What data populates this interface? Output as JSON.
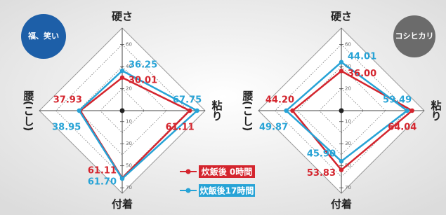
{
  "legend": [
    {
      "name": "炊飯後 0時間",
      "color": "#d4252e"
    },
    {
      "name": "炊飯後17時間",
      "color": "#27a3d6"
    }
  ],
  "chart_data": [
    {
      "type": "radar",
      "title": "福、笑い",
      "badge_color": "#1d5fa8",
      "categories": [
        "硬さ",
        "粘り",
        "付着",
        "腰(こし)"
      ],
      "rlim": [
        0,
        75
      ],
      "rticks": [
        10,
        20,
        30,
        40,
        50,
        60,
        70
      ],
      "series": [
        {
          "values": [
            30.01,
            61.11,
            61.11,
            37.93
          ],
          "value_labels": [
            "30.01",
            "61.11",
            "61.11",
            "37.93"
          ]
        },
        {
          "values": [
            36.25,
            67.75,
            61.7,
            38.95
          ],
          "value_labels": [
            "36.25",
            "67.75",
            "61.70",
            "38.95"
          ]
        }
      ]
    },
    {
      "type": "radar",
      "title": "コシヒカリ",
      "badge_color": "#6b6b6b",
      "categories": [
        "硬さ",
        "粘り",
        "付着",
        "腰(こし)"
      ],
      "rlim": [
        0,
        75
      ],
      "rticks": [
        10,
        20,
        30,
        40,
        50,
        60,
        70
      ],
      "series": [
        {
          "values": [
            36.0,
            64.04,
            53.83,
            44.2
          ],
          "value_labels": [
            "36.00",
            "64.04",
            "53.83",
            "44.20"
          ]
        },
        {
          "values": [
            44.01,
            59.49,
            45.9,
            49.87
          ],
          "value_labels": [
            "44.01",
            "59.49",
            "45.90",
            "49.87"
          ]
        }
      ]
    }
  ]
}
